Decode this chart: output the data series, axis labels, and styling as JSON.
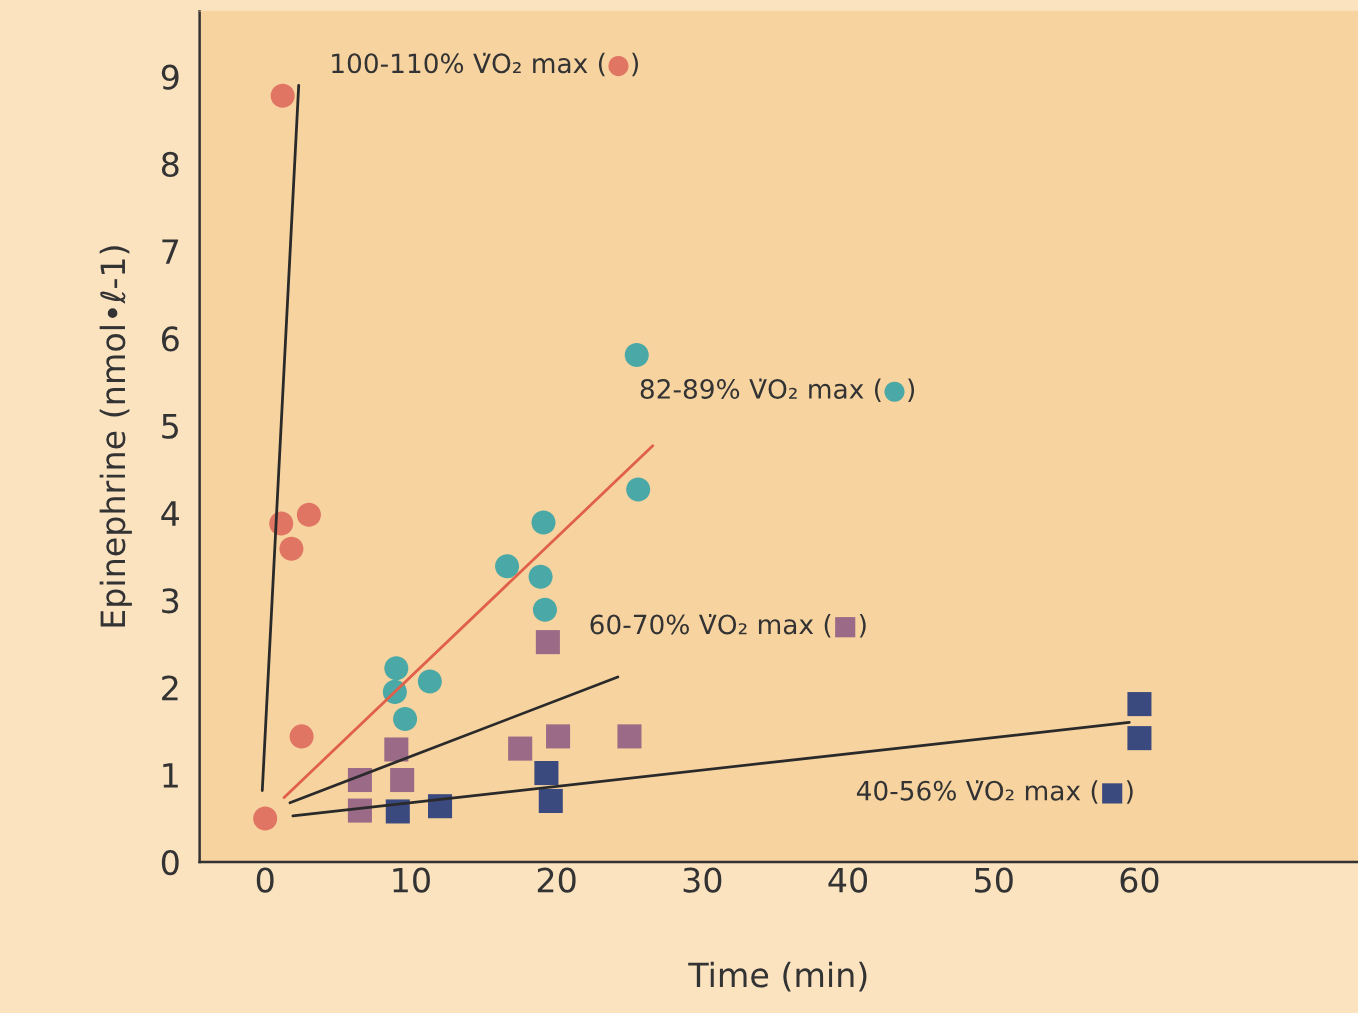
{
  "chart_data": {
    "type": "scatter",
    "xlabel": "Time (min)",
    "ylabel": "Epinephrine (nmol•ℓ-1)",
    "xlim": [
      -4.5,
      75
    ],
    "ylim": [
      0,
      9.75
    ],
    "xticks": [
      0,
      10,
      20,
      30,
      40,
      50,
      60
    ],
    "yticks": [
      0,
      1,
      2,
      3,
      4,
      5,
      6,
      7,
      8,
      9
    ],
    "grid": false,
    "legend": false,
    "series": [
      {
        "name": "100-110% V̇O₂ max (●)",
        "color": "#e07563",
        "marker": "circle",
        "x": [
          1.2,
          1.1,
          1.8,
          3.0,
          2.5,
          0
        ],
        "values": [
          8.78,
          3.88,
          3.59,
          3.98,
          1.44,
          0.5
        ]
      },
      {
        "type": "line",
        "color": "#2a2a2a",
        "x": [
          -0.2,
          2.3
        ],
        "values": [
          0.82,
          8.9
        ]
      },
      {
        "name": "82-89% V̇O₂ max (●)",
        "color": "#4aa9a6",
        "marker": "circle",
        "x": [
          9.0,
          8.9,
          9.6,
          11.3,
          16.6,
          19.1,
          18.9,
          19.2,
          25.5,
          25.6
        ],
        "values": [
          2.22,
          1.95,
          1.64,
          2.07,
          3.39,
          3.89,
          3.27,
          2.89,
          5.81,
          4.27
        ]
      },
      {
        "type": "line",
        "color": "#e0604a",
        "x": [
          1.3,
          26.6
        ],
        "values": [
          0.74,
          4.77
        ]
      },
      {
        "name": "60-70% V̇O₂ max (■)",
        "color": "#9a6a86",
        "marker": "square",
        "x": [
          6.5,
          6.5,
          9.0,
          9.4,
          17.5,
          19.4,
          20.1,
          25.0
        ],
        "values": [
          0.59,
          0.94,
          1.29,
          0.94,
          1.3,
          2.52,
          1.44,
          1.44
        ]
      },
      {
        "type": "line",
        "color": "#2a2a2a",
        "x": [
          1.7,
          24.2
        ],
        "values": [
          0.68,
          2.12
        ]
      },
      {
        "name": "40-56% V̇O₂ max (■)",
        "color": "#3b4a7e",
        "marker": "square",
        "x": [
          9.1,
          12.0,
          19.3,
          19.6,
          60,
          60
        ],
        "values": [
          0.58,
          0.64,
          1.02,
          0.7,
          1.81,
          1.42
        ]
      },
      {
        "type": "line",
        "color": "#2a2a2a",
        "x": [
          1.9,
          59.3
        ],
        "values": [
          0.53,
          1.6
        ]
      }
    ]
  }
}
